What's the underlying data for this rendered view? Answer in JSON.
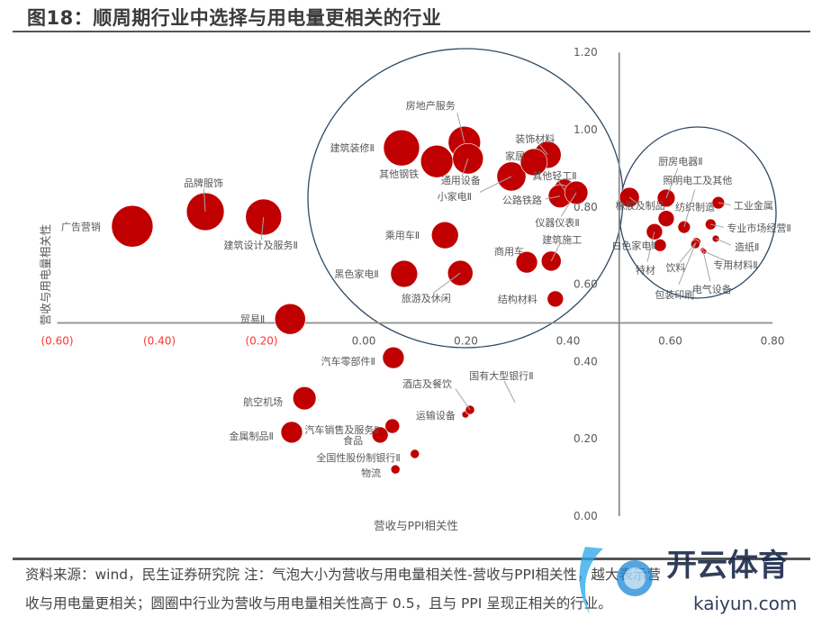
{
  "title": "图18：顺周期行业中选择与用电量更相关的行业",
  "footer": {
    "line1": "资料来源：wind，民生证券研究院  注：气泡大小为营收与用电量相关性-营收与PPI相关性，越大表示营",
    "line2": "收与用电量更相关；圆圈中行业为营收与用电量相关性高于 0.5，且与 PPI 呈现正相关的行业。"
  },
  "watermark": {
    "brand": "开云体育",
    "url": "kaiyun.com"
  },
  "colors": {
    "bubble": "#C00000",
    "circle": "#2E4A66",
    "xtick_negative": "#FF3333"
  },
  "chart_data": {
    "type": "scatter",
    "title": "",
    "xlabel": "营收与PPI相关性",
    "ylabel": "营收与用电量相关性",
    "xlim": [
      -0.6,
      0.8
    ],
    "ylim": [
      0,
      1.2
    ],
    "axis_cross": {
      "x": 0.5,
      "y": 0.5
    },
    "xticks": [
      "(0.60)",
      "(0.40)",
      "(0.20)",
      "0.00",
      "0.20",
      "0.40",
      "0.60",
      "0.80"
    ],
    "xtick_values": [
      -0.6,
      -0.4,
      -0.2,
      0,
      0.2,
      0.4,
      0.6,
      0.8
    ],
    "yticks": [
      "0.00",
      "0.20",
      "0.40",
      "0.60",
      "0.80",
      "1.00",
      "1.20"
    ],
    "ytick_values": [
      0,
      0.2,
      0.4,
      0.6,
      0.8,
      1.0,
      1.2
    ],
    "grid": false,
    "highlight_circles": [
      "left-cluster",
      "right-cluster"
    ],
    "points": [
      {
        "name": "广告营销",
        "x": -0.453,
        "y": 0.75,
        "size": 1.0
      },
      {
        "name": "品牌服饰",
        "x": -0.31,
        "y": 0.788,
        "size": 0.91
      },
      {
        "name": "建筑设计及服务Ⅱ",
        "x": -0.196,
        "y": 0.774,
        "size": 0.87
      },
      {
        "name": "贸易Ⅱ",
        "x": -0.144,
        "y": 0.51,
        "size": 0.74
      },
      {
        "name": "建筑装修Ⅱ",
        "x": 0.074,
        "y": 0.953,
        "size": 0.87
      },
      {
        "name": "其他钢铁",
        "x": 0.143,
        "y": 0.918,
        "size": 0.78
      },
      {
        "name": "房地产服务",
        "x": 0.197,
        "y": 0.967,
        "size": 0.78
      },
      {
        "name": "通用设备",
        "x": 0.204,
        "y": 0.925,
        "size": 0.74
      },
      {
        "name": "小家电Ⅱ",
        "x": 0.289,
        "y": 0.879,
        "size": 0.7
      },
      {
        "name": "装饰材料",
        "x": 0.36,
        "y": 0.935,
        "size": 0.65
      },
      {
        "name": "家居",
        "x": 0.333,
        "y": 0.916,
        "size": 0.65
      },
      {
        "name": "其他轻工Ⅱ",
        "x": 0.393,
        "y": 0.844,
        "size": 0.52
      },
      {
        "name": "公路铁路",
        "x": 0.384,
        "y": 0.828,
        "size": 0.56
      },
      {
        "name": "仪器仪表Ⅱ",
        "x": 0.416,
        "y": 0.837,
        "size": 0.56
      },
      {
        "name": "乘用车Ⅱ",
        "x": 0.159,
        "y": 0.727,
        "size": 0.65
      },
      {
        "name": "黑色家电Ⅱ",
        "x": 0.079,
        "y": 0.627,
        "size": 0.65
      },
      {
        "name": "旅游及休闲",
        "x": 0.189,
        "y": 0.629,
        "size": 0.61
      },
      {
        "name": "商用车",
        "x": 0.319,
        "y": 0.657,
        "size": 0.52
      },
      {
        "name": "建筑施工",
        "x": 0.367,
        "y": 0.66,
        "size": 0.48
      },
      {
        "name": "结构材料",
        "x": 0.375,
        "y": 0.562,
        "size": 0.39
      },
      {
        "name": "橡胶及制品",
        "x": 0.52,
        "y": 0.825,
        "size": 0.48
      },
      {
        "name": "厨房电器Ⅱ",
        "x": 0.592,
        "y": 0.823,
        "size": 0.43
      },
      {
        "name": "纺织制造",
        "x": 0.592,
        "y": 0.77,
        "size": 0.39
      },
      {
        "name": "照明电工及其他",
        "x": 0.627,
        "y": 0.748,
        "size": 0.3
      },
      {
        "name": "特材",
        "x": 0.569,
        "y": 0.736,
        "size": 0.39
      },
      {
        "name": "白色家电Ⅱ",
        "x": 0.58,
        "y": 0.701,
        "size": 0.3
      },
      {
        "name": "工业金属",
        "x": 0.694,
        "y": 0.811,
        "size": 0.3
      },
      {
        "name": "专业市场经营Ⅱ",
        "x": 0.679,
        "y": 0.755,
        "size": 0.26
      },
      {
        "name": "造纸Ⅱ",
        "x": 0.689,
        "y": 0.718,
        "size": 0.17
      },
      {
        "name": "饮料",
        "x": 0.651,
        "y": 0.709,
        "size": 0.22
      },
      {
        "name": "包装印刷",
        "x": 0.649,
        "y": 0.704,
        "size": 0.22
      },
      {
        "name": "电气设备",
        "x": 0.664,
        "y": 0.688,
        "size": 0.13
      },
      {
        "name": "专用材料Ⅱ",
        "x": 0.666,
        "y": 0.685,
        "size": 0.13
      },
      {
        "name": "汽车零部件Ⅱ",
        "x": 0.058,
        "y": 0.41,
        "size": 0.52
      },
      {
        "name": "航空机场",
        "x": -0.116,
        "y": 0.305,
        "size": 0.56
      },
      {
        "name": "金属制品Ⅱ",
        "x": -0.141,
        "y": 0.217,
        "size": 0.52
      },
      {
        "name": "汽车销售及服务Ⅱ",
        "x": 0.056,
        "y": 0.233,
        "size": 0.35
      },
      {
        "name": "食品",
        "x": 0.032,
        "y": 0.21,
        "size": 0.39
      },
      {
        "name": "全国性股份制银行Ⅱ",
        "x": 0.1,
        "y": 0.161,
        "size": 0.22
      },
      {
        "name": "物流",
        "x": 0.062,
        "y": 0.121,
        "size": 0.22
      },
      {
        "name": "运输设备",
        "x": 0.199,
        "y": 0.263,
        "size": 0.17
      },
      {
        "name": "酒店及餐饮",
        "x": 0.208,
        "y": 0.275,
        "size": 0.22
      },
      {
        "name": "国有大型银行Ⅱ",
        "x": 0.296,
        "y": 0.294,
        "size": 0
      }
    ]
  }
}
